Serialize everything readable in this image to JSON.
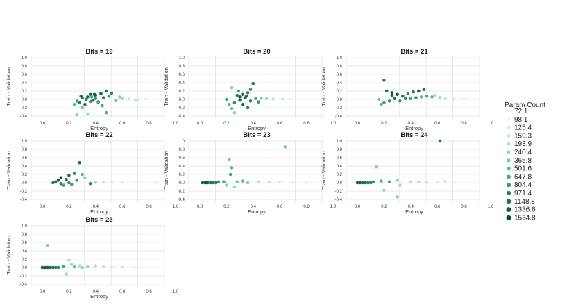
{
  "chart_data": {
    "type": "scatter",
    "xlabel": "Entropy",
    "ylabel": "Train - Validation",
    "xlim": [
      0,
      1
    ],
    "ylim": [
      -0.45,
      1.05
    ],
    "x_ticks": [
      "0.0",
      "0.2",
      "0.4",
      "0.6",
      "0.8",
      "1.0"
    ],
    "y_ticks": [
      "-0.4",
      "-0.2",
      "0.0",
      "0.2",
      "0.4",
      "0.6",
      "0.8",
      "1.0"
    ],
    "grid": true,
    "legend": {
      "title": "Param Count",
      "placement": "right",
      "entries": [
        "72.1",
        "98.1",
        "125.4",
        "159.3",
        "193.9",
        "240.4",
        "365.8",
        "501.6",
        "647.8",
        "804.4",
        "971.4",
        "1148.8",
        "1336.6",
        "1534.8"
      ],
      "colors": [
        "#f2fbf8",
        "#e2f5ee",
        "#d0eee4",
        "#bde7d9",
        "#a9dfcd",
        "#93d5bf",
        "#7bcaaf",
        "#61bd9d",
        "#46ad88",
        "#2f9b72",
        "#1f885d",
        "#14744b",
        "#0b613c",
        "#054d2e"
      ]
    },
    "panels": [
      {
        "title": "Bits = 19",
        "points": [
          [
            0.36,
            0.12,
            13
          ],
          [
            0.4,
            0.1,
            12
          ],
          [
            0.44,
            0.14,
            13
          ],
          [
            0.48,
            0.2,
            12
          ],
          [
            0.52,
            0.15,
            11
          ],
          [
            0.38,
            -0.02,
            12
          ],
          [
            0.42,
            -0.06,
            11
          ],
          [
            0.34,
            0.06,
            13
          ],
          [
            0.3,
            0.04,
            12
          ],
          [
            0.28,
            -0.08,
            11
          ],
          [
            0.32,
            -0.12,
            12
          ],
          [
            0.46,
            0.04,
            11
          ],
          [
            0.5,
            0.08,
            10
          ],
          [
            0.4,
            0.02,
            10
          ],
          [
            0.36,
            -0.05,
            10
          ],
          [
            0.26,
            -0.04,
            9
          ],
          [
            0.24,
            -0.12,
            8
          ],
          [
            0.3,
            -0.2,
            7
          ],
          [
            0.45,
            -0.15,
            9
          ],
          [
            0.42,
            -0.08,
            8
          ],
          [
            0.55,
            -0.03,
            7
          ],
          [
            0.6,
            0.02,
            5
          ],
          [
            0.65,
            0.01,
            3
          ],
          [
            0.72,
            0.01,
            2
          ],
          [
            0.78,
            0.01,
            1
          ],
          [
            0.7,
            -0.02,
            4
          ],
          [
            0.58,
            0.06,
            6
          ],
          [
            0.33,
            0.0,
            11
          ],
          [
            0.29,
            0.08,
            12
          ],
          [
            0.39,
            0.12,
            13
          ],
          [
            0.26,
            -0.37,
            6
          ],
          [
            0.34,
            -0.35,
            5
          ],
          [
            0.48,
            -0.32,
            8
          ],
          [
            0.37,
            0.06,
            9
          ]
        ]
      },
      {
        "title": "Bits = 20",
        "points": [
          [
            0.32,
            0.12,
            12
          ],
          [
            0.36,
            0.16,
            11
          ],
          [
            0.4,
            0.38,
            12
          ],
          [
            0.38,
            0.24,
            10
          ],
          [
            0.24,
            0.28,
            6
          ],
          [
            0.28,
            0.1,
            11
          ],
          [
            0.34,
            0.04,
            13
          ],
          [
            0.3,
            -0.02,
            12
          ],
          [
            0.26,
            -0.08,
            10
          ],
          [
            0.22,
            -0.12,
            8
          ],
          [
            0.24,
            -0.22,
            7
          ],
          [
            0.26,
            -0.32,
            6
          ],
          [
            0.36,
            -0.2,
            11
          ],
          [
            0.42,
            0.02,
            9
          ],
          [
            0.46,
            0.03,
            7
          ],
          [
            0.5,
            0.02,
            5
          ],
          [
            0.55,
            0.01,
            3
          ],
          [
            0.62,
            0.01,
            2
          ],
          [
            0.68,
            0.01,
            1
          ],
          [
            0.32,
            -0.12,
            13
          ],
          [
            0.35,
            0.08,
            12
          ],
          [
            0.29,
            0.2,
            9
          ],
          [
            0.2,
            0.0,
            9
          ],
          [
            0.44,
            -0.06,
            10
          ],
          [
            0.3,
            0.06,
            13
          ],
          [
            0.38,
            -0.04,
            11
          ]
        ]
      },
      {
        "title": "Bits = 21",
        "points": [
          [
            0.2,
            0.46,
            11
          ],
          [
            0.22,
            0.2,
            12
          ],
          [
            0.26,
            0.16,
            13
          ],
          [
            0.3,
            0.12,
            13
          ],
          [
            0.34,
            0.08,
            12
          ],
          [
            0.38,
            0.14,
            11
          ],
          [
            0.42,
            0.18,
            12
          ],
          [
            0.46,
            0.2,
            13
          ],
          [
            0.5,
            0.24,
            12
          ],
          [
            0.28,
            0.02,
            12
          ],
          [
            0.24,
            -0.04,
            10
          ],
          [
            0.2,
            -0.08,
            9
          ],
          [
            0.18,
            -0.12,
            8
          ],
          [
            0.36,
            0.02,
            11
          ],
          [
            0.44,
            0.04,
            10
          ],
          [
            0.52,
            0.08,
            9
          ],
          [
            0.56,
            0.06,
            8
          ],
          [
            0.62,
            0.05,
            5
          ],
          [
            0.66,
            0.02,
            3
          ],
          [
            0.72,
            0.01,
            2
          ],
          [
            0.8,
            0.03,
            1
          ],
          [
            0.32,
            -0.04,
            10
          ],
          [
            0.4,
            0.02,
            9
          ],
          [
            0.16,
            0.0,
            7
          ],
          [
            0.48,
            0.06,
            8
          ],
          [
            0.58,
            0.1,
            4
          ],
          [
            0.26,
            0.1,
            13
          ]
        ]
      },
      {
        "title": "Bits = 22",
        "points": [
          [
            0.12,
            0.06,
            13
          ],
          [
            0.1,
            0.02,
            12
          ],
          [
            0.14,
            -0.02,
            11
          ],
          [
            0.18,
            0.08,
            12
          ],
          [
            0.2,
            0.0,
            10
          ],
          [
            0.16,
            -0.06,
            9
          ],
          [
            0.22,
            -0.04,
            9
          ],
          [
            0.28,
            0.48,
            12
          ],
          [
            0.24,
            0.22,
            11
          ],
          [
            0.3,
            0.2,
            8
          ],
          [
            0.32,
            0.12,
            6
          ],
          [
            0.2,
            0.18,
            12
          ],
          [
            0.26,
            0.06,
            10
          ],
          [
            0.36,
            -0.02,
            11
          ],
          [
            0.4,
            0.01,
            5
          ],
          [
            0.46,
            0.01,
            3
          ],
          [
            0.52,
            0.01,
            2
          ],
          [
            0.6,
            0.01,
            2
          ],
          [
            0.7,
            0.01,
            1
          ],
          [
            0.85,
            0.01,
            1
          ],
          [
            0.14,
            0.12,
            13
          ],
          [
            0.08,
            0.0,
            11
          ]
        ]
      },
      {
        "title": "Bits = 23",
        "points": [
          [
            0.02,
            0.0,
            13
          ],
          [
            0.04,
            0.0,
            13
          ],
          [
            0.06,
            0.0,
            12
          ],
          [
            0.08,
            0.0,
            12
          ],
          [
            0.1,
            0.0,
            11
          ],
          [
            0.12,
            0.0,
            11
          ],
          [
            0.05,
            0.0,
            13
          ],
          [
            0.14,
            0.02,
            10
          ],
          [
            0.18,
            0.02,
            9
          ],
          [
            0.22,
            0.56,
            7
          ],
          [
            0.24,
            0.36,
            8
          ],
          [
            0.23,
            0.2,
            9
          ],
          [
            0.64,
            0.86,
            7
          ],
          [
            0.2,
            -0.06,
            6
          ],
          [
            0.26,
            -0.1,
            5
          ],
          [
            0.32,
            0.04,
            8
          ],
          [
            0.36,
            0.0,
            6
          ],
          [
            0.44,
            0.02,
            4
          ],
          [
            0.52,
            0.01,
            3
          ],
          [
            0.6,
            0.01,
            2
          ],
          [
            0.7,
            0.01,
            1
          ],
          [
            0.8,
            0.01,
            1
          ],
          [
            0.28,
            0.02,
            7
          ]
        ]
      },
      {
        "title": "Bits = 24",
        "points": [
          [
            0.0,
            0.0,
            13
          ],
          [
            0.02,
            0.0,
            13
          ],
          [
            0.04,
            0.0,
            12
          ],
          [
            0.06,
            0.0,
            12
          ],
          [
            0.08,
            0.0,
            11
          ],
          [
            0.1,
            0.0,
            11
          ],
          [
            0.62,
            1.0,
            12
          ],
          [
            0.14,
            0.38,
            6
          ],
          [
            0.18,
            0.04,
            8
          ],
          [
            0.2,
            -0.18,
            5
          ],
          [
            0.3,
            0.06,
            6
          ],
          [
            0.32,
            -0.06,
            5
          ],
          [
            0.3,
            -0.34,
            6
          ],
          [
            0.4,
            0.02,
            4
          ],
          [
            0.46,
            0.02,
            4
          ],
          [
            0.52,
            0.01,
            3
          ],
          [
            0.6,
            0.01,
            2
          ],
          [
            0.66,
            0.04,
            2
          ],
          [
            0.72,
            0.01,
            1
          ],
          [
            0.24,
            0.02,
            9
          ],
          [
            0.12,
            0.02,
            10
          ]
        ]
      },
      {
        "title": "Bits = 25",
        "points": [
          [
            0.0,
            0.0,
            13
          ],
          [
            0.02,
            0.0,
            13
          ],
          [
            0.04,
            0.0,
            13
          ],
          [
            0.06,
            0.0,
            12
          ],
          [
            0.08,
            0.0,
            12
          ],
          [
            0.1,
            0.0,
            11
          ],
          [
            0.12,
            0.0,
            11
          ],
          [
            0.04,
            0.53,
            6
          ],
          [
            0.2,
            0.18,
            4
          ],
          [
            0.22,
            0.08,
            5
          ],
          [
            0.18,
            -0.16,
            5
          ],
          [
            0.28,
            0.04,
            4
          ],
          [
            0.3,
            0.0,
            6
          ],
          [
            0.34,
            0.02,
            5
          ],
          [
            0.4,
            0.04,
            4
          ],
          [
            0.46,
            0.02,
            3
          ],
          [
            0.52,
            0.01,
            2
          ],
          [
            0.6,
            0.01,
            2
          ],
          [
            0.7,
            0.01,
            1
          ],
          [
            0.24,
            0.02,
            7
          ],
          [
            0.16,
            0.02,
            9
          ]
        ]
      }
    ]
  }
}
